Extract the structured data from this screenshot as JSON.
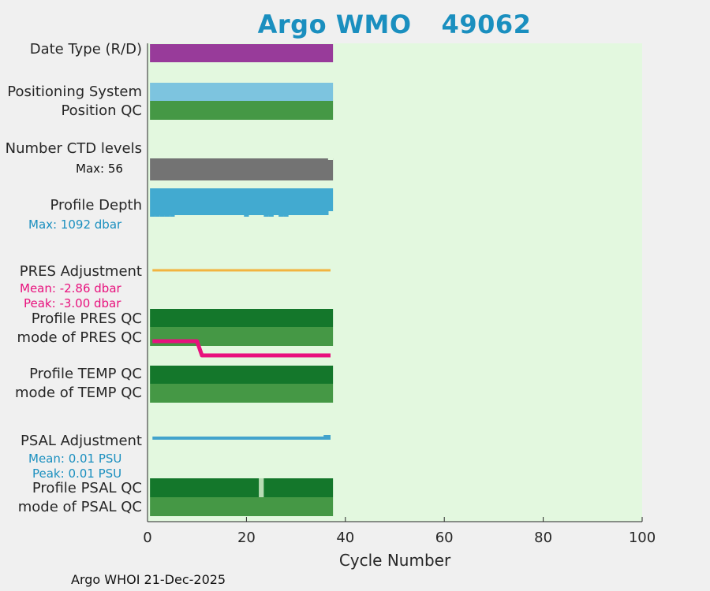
{
  "title_prefix": "Argo WMO",
  "title_number": "49062",
  "footer": "Argo WHOI 21-Dec-2025",
  "colors": {
    "background": "#f0f0f0",
    "plot_bg": "#e3f8df",
    "title": "#1a8fbf",
    "date_type": "#983b9a",
    "positioning": "#7dc4df",
    "qc_mode": "#459845",
    "qc_profile": "#14772b",
    "ctd": "#737373",
    "depth": "#42aad0",
    "pres_adj": "#f2b440",
    "pres_mode_line": "#e8117d",
    "psal_adj": "#42a3cc",
    "psal_qc_gap": "#b8dbb4",
    "accent_blue": "#1a8fbf",
    "accent_pink": "#e8117d"
  },
  "labels": {
    "date_type": "Date Type (R/D)",
    "positioning": "Positioning System",
    "position_qc": "Position QC",
    "ctd_levels": "Number CTD levels",
    "ctd_max": "Max: 56",
    "profile_depth": "Profile Depth",
    "depth_max": "Max: 1092 dbar",
    "pres_adj": "PRES Adjustment",
    "pres_mean": "Mean: -2.86 dbar",
    "pres_peak": "Peak: -3.00 dbar",
    "profile_pres_qc": "Profile PRES QC",
    "mode_pres_qc": "mode of PRES QC",
    "profile_temp_qc": "Profile TEMP QC",
    "mode_temp_qc": "mode of TEMP QC",
    "psal_adj": "PSAL Adjustment",
    "psal_mean": "Mean: 0.01 PSU",
    "psal_peak": "Peak: 0.01 PSU",
    "profile_psal_qc": "Profile PSAL QC",
    "mode_psal_qc": "mode of PSAL QC"
  },
  "chart_data": {
    "type": "bar",
    "title": "Argo WMO   49062",
    "xlabel": "Cycle Number",
    "xlim": [
      0,
      100
    ],
    "xticks": [
      0,
      20,
      40,
      60,
      80,
      100
    ],
    "cycle_range": [
      0.5,
      37.5
    ],
    "ctd_levels_max": 56,
    "profile_depth_max_dbar": 1092,
    "pres_adjustment_mean_dbar": -2.86,
    "pres_adjustment_peak_dbar": -3.0,
    "psal_adjustment_mean_psu": 0.01,
    "psal_adjustment_peak_psu": 0.01,
    "pres_mode_line": [
      [
        1,
        0
      ],
      [
        10,
        0
      ],
      [
        11,
        1
      ],
      [
        37,
        1
      ]
    ],
    "psal_qc_gap_cycles": [
      23
    ],
    "depth_notch_cycles": [
      1,
      2,
      3,
      4,
      5,
      20,
      24,
      25,
      27,
      28
    ]
  }
}
